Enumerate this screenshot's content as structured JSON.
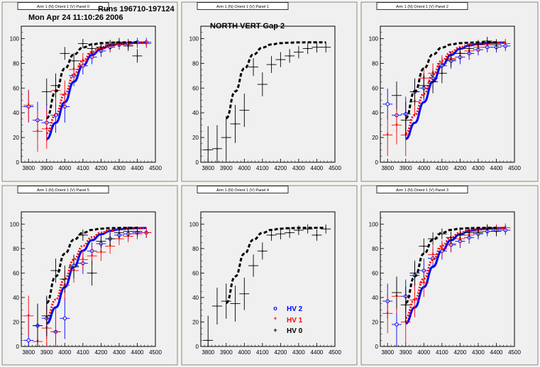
{
  "header": {
    "runs": "Runs 196710-197124",
    "date": "Mon Apr 24 11:10:26 2006",
    "gap_label": "NORTH VERT Gap 2"
  },
  "legend": {
    "hv2": "HV 2",
    "hv1": "HV 1",
    "hv0": "HV 0"
  },
  "colors": {
    "hv2": "#0000ff",
    "hv1": "#ff0000",
    "hv0": "#000000",
    "frame": "#f0f0f0",
    "canvas_bg": "#f5f5f0"
  },
  "chart_data": [
    {
      "type": "scatter",
      "title": "Arm 1 (N) Orient 1 (V) Panel 0",
      "xlim": [
        3760,
        4500
      ],
      "ylim": [
        0,
        110
      ],
      "xticks": [
        3800,
        3900,
        4000,
        4100,
        4200,
        4300,
        4400,
        4500
      ],
      "yticks": [
        0,
        20,
        40,
        60,
        80,
        100
      ],
      "series": [
        {
          "name": "HV 2",
          "x": [
            3800,
            3850,
            3900,
            3950,
            4000,
            4050,
            4100,
            4150,
            4200,
            4250,
            4300,
            4350,
            4400,
            4450
          ],
          "y": [
            45,
            34,
            32,
            38,
            45,
            70,
            78,
            85,
            90,
            93,
            95,
            96,
            97,
            97
          ],
          "fit": true,
          "style": "solid"
        },
        {
          "name": "HV 1",
          "x": [
            3800,
            3850,
            3900,
            3950,
            4000,
            4050,
            4100,
            4150,
            4200,
            4250,
            4300,
            4350,
            4400,
            4450
          ],
          "y": [
            46,
            25,
            27,
            58,
            55,
            75,
            82,
            88,
            92,
            94,
            95,
            95,
            96,
            96
          ],
          "fit": true,
          "style": "dotted"
        },
        {
          "name": "HV 0",
          "x": [
            3900,
            3950,
            4000,
            4050,
            4100,
            4150,
            4200,
            4250,
            4300,
            4350,
            4400
          ],
          "y": [
            57,
            62,
            88,
            82,
            96,
            92,
            93,
            95,
            97,
            94,
            86
          ],
          "fit": true,
          "style": "dashed"
        }
      ]
    },
    {
      "type": "scatter",
      "title": "Arm 1 (N) Orient 1 (V) Panel 1",
      "xlim": [
        3760,
        4500
      ],
      "ylim": [
        0,
        110
      ],
      "xticks": [
        3800,
        3900,
        4000,
        4100,
        4200,
        4300,
        4400,
        4500
      ],
      "yticks": [
        0,
        20,
        40,
        60,
        80,
        100
      ],
      "series": [
        {
          "name": "HV 0",
          "x": [
            3800,
            3850,
            3900,
            3950,
            4000,
            4050,
            4100,
            4150,
            4200,
            4250,
            4300,
            4350,
            4400,
            4450
          ],
          "y": [
            10,
            11,
            20,
            31,
            42,
            77,
            63,
            79,
            83,
            86,
            89,
            92,
            93,
            93
          ],
          "fit": true,
          "style": "dashed"
        }
      ]
    },
    {
      "type": "scatter",
      "title": "Arm 1 (N) Orient 1 (V) Panel 2",
      "xlim": [
        3760,
        4500
      ],
      "ylim": [
        0,
        110
      ],
      "xticks": [
        3800,
        3900,
        4000,
        4100,
        4200,
        4300,
        4400,
        4500
      ],
      "yticks": [
        0,
        20,
        40,
        60,
        80,
        100
      ],
      "series": [
        {
          "name": "HV 2",
          "x": [
            3800,
            3850,
            3900,
            3950,
            4000,
            4050,
            4100,
            4150,
            4200,
            4250,
            4300,
            4350,
            4400,
            4450
          ],
          "y": [
            47,
            38,
            39,
            57,
            60,
            68,
            78,
            82,
            85,
            88,
            91,
            93,
            93,
            94
          ],
          "fit": true,
          "style": "solid"
        },
        {
          "name": "HV 1",
          "x": [
            3800,
            3850,
            3900,
            3950,
            4000,
            4050,
            4100,
            4150,
            4200,
            4250,
            4300,
            4350,
            4400,
            4450
          ],
          "y": [
            22,
            30,
            22,
            49,
            68,
            72,
            80,
            84,
            88,
            90,
            93,
            95,
            96,
            96
          ],
          "fit": true,
          "style": "dotted"
        },
        {
          "name": "HV 0",
          "x": [
            3850,
            3900,
            3950,
            4000,
            4050,
            4100,
            4150,
            4200,
            4250,
            4300,
            4350,
            4400
          ],
          "y": [
            54,
            34,
            57,
            62,
            65,
            72,
            83,
            88,
            92,
            95,
            98,
            95
          ],
          "fit": true,
          "style": "dashed"
        }
      ]
    },
    {
      "type": "scatter",
      "title": "Arm 1 (N) Orient 1 (V) Panel 5",
      "xlim": [
        3760,
        4500
      ],
      "ylim": [
        0,
        110
      ],
      "xticks": [
        3800,
        3900,
        4000,
        4100,
        4200,
        4300,
        4400,
        4500
      ],
      "yticks": [
        0,
        20,
        40,
        60,
        80,
        100
      ],
      "series": [
        {
          "name": "HV 2",
          "x": [
            3800,
            3850,
            3900,
            3950,
            4000,
            4050,
            4100,
            4150,
            4200,
            4250,
            4300,
            4350,
            4400,
            4450
          ],
          "y": [
            5,
            17,
            23,
            12,
            23,
            66,
            68,
            78,
            84,
            88,
            91,
            92,
            93,
            93
          ],
          "fit": true,
          "style": "solid"
        },
        {
          "name": "HV 1",
          "x": [
            3800,
            3850,
            3900,
            3950,
            4000,
            4050,
            4100,
            4150,
            4200,
            4250,
            4300,
            4350,
            4400,
            4450
          ],
          "y": [
            25,
            4,
            15,
            12,
            50,
            62,
            71,
            74,
            77,
            82,
            88,
            90,
            92,
            93
          ],
          "fit": true,
          "style": "dotted"
        },
        {
          "name": "HV 0",
          "x": [
            3850,
            3900,
            3950,
            4000,
            4050,
            4100,
            4150,
            4200,
            4250,
            4300,
            4350,
            4400
          ],
          "y": [
            17,
            25,
            62,
            55,
            65,
            91,
            60,
            86,
            88,
            93,
            94,
            94
          ],
          "fit": true,
          "style": "dashed"
        }
      ]
    },
    {
      "type": "scatter",
      "title": "Arm 1 (N) Orient 1 (V) Panel 4",
      "xlim": [
        3760,
        4500
      ],
      "ylim": [
        0,
        110
      ],
      "xticks": [
        3800,
        3900,
        4000,
        4100,
        4200,
        4300,
        4400,
        4500
      ],
      "yticks": [
        0,
        20,
        40,
        60,
        80,
        100
      ],
      "series": [
        {
          "name": "HV 0",
          "x": [
            3800,
            3850,
            3900,
            3950,
            4000,
            4050,
            4100,
            4150,
            4200,
            4250,
            4300,
            4350,
            4400,
            4450
          ],
          "y": [
            5,
            33,
            37,
            35,
            43,
            66,
            78,
            91,
            92,
            93,
            95,
            96,
            91,
            96
          ],
          "fit": true,
          "style": "dashed"
        }
      ]
    },
    {
      "type": "scatter",
      "title": "Arm 1 (N) Orient 1 (V) Panel 3",
      "xlim": [
        3760,
        4500
      ],
      "ylim": [
        0,
        110
      ],
      "xticks": [
        3800,
        3900,
        4000,
        4100,
        4200,
        4300,
        4400,
        4500
      ],
      "yticks": [
        0,
        20,
        40,
        60,
        80,
        100
      ],
      "series": [
        {
          "name": "HV 2",
          "x": [
            3800,
            3850,
            3900,
            3950,
            4000,
            4050,
            4100,
            4150,
            4200,
            4250,
            4300,
            4350,
            4400,
            4450
          ],
          "y": [
            37,
            18,
            41,
            58,
            62,
            72,
            78,
            83,
            86,
            89,
            92,
            94,
            95,
            95
          ],
          "fit": true,
          "style": "solid"
        },
        {
          "name": "HV 1",
          "x": [
            3800,
            3850,
            3900,
            3950,
            4000,
            4050,
            4100,
            4150,
            4200,
            4250,
            4300,
            4350,
            4400,
            4450
          ],
          "y": [
            27,
            41,
            20,
            38,
            52,
            75,
            80,
            84,
            88,
            91,
            94,
            96,
            96,
            97
          ],
          "fit": true,
          "style": "dotted"
        },
        {
          "name": "HV 0",
          "x": [
            3850,
            3900,
            3950,
            4000,
            4050,
            4100,
            4150,
            4200,
            4250,
            4300,
            4350,
            4400
          ],
          "y": [
            44,
            34,
            60,
            82,
            88,
            92,
            89,
            91,
            93,
            93,
            96,
            94
          ],
          "fit": true,
          "style": "dashed"
        }
      ]
    }
  ]
}
